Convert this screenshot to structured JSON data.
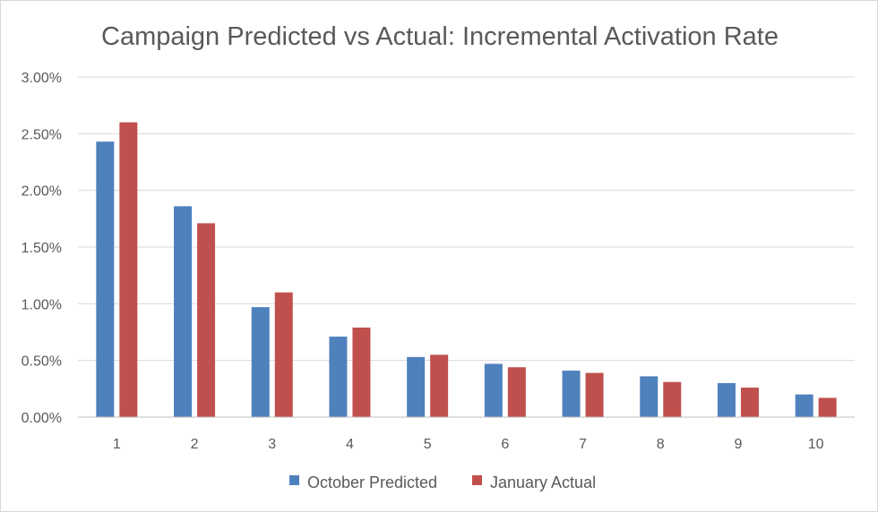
{
  "chart_data": {
    "type": "bar",
    "title": "Campaign Predicted vs Actual: Incremental Activation Rate",
    "xlabel": "",
    "ylabel": "",
    "categories": [
      "1",
      "2",
      "3",
      "4",
      "5",
      "6",
      "7",
      "8",
      "9",
      "10"
    ],
    "series": [
      {
        "name": "October Predicted",
        "color": "#4f81bd",
        "values": [
          2.43,
          1.86,
          0.97,
          0.71,
          0.53,
          0.47,
          0.41,
          0.36,
          0.3,
          0.2
        ]
      },
      {
        "name": "January Actual",
        "color": "#c0504d",
        "values": [
          2.6,
          1.71,
          1.1,
          0.79,
          0.55,
          0.44,
          0.39,
          0.31,
          0.26,
          0.17
        ]
      }
    ],
    "ylim": [
      0,
      3.0
    ],
    "yticks": [
      "0.00%",
      "0.50%",
      "1.00%",
      "1.50%",
      "2.00%",
      "2.50%",
      "3.00%"
    ],
    "ytick_values": [
      0,
      0.5,
      1.0,
      1.5,
      2.0,
      2.5,
      3.0
    ],
    "value_unit": "percent",
    "grid": true,
    "legend_position": "bottom",
    "colors": {
      "gridline": "#d9d9d9",
      "axis_line": "#bfbfbf",
      "text": "#595959"
    }
  }
}
